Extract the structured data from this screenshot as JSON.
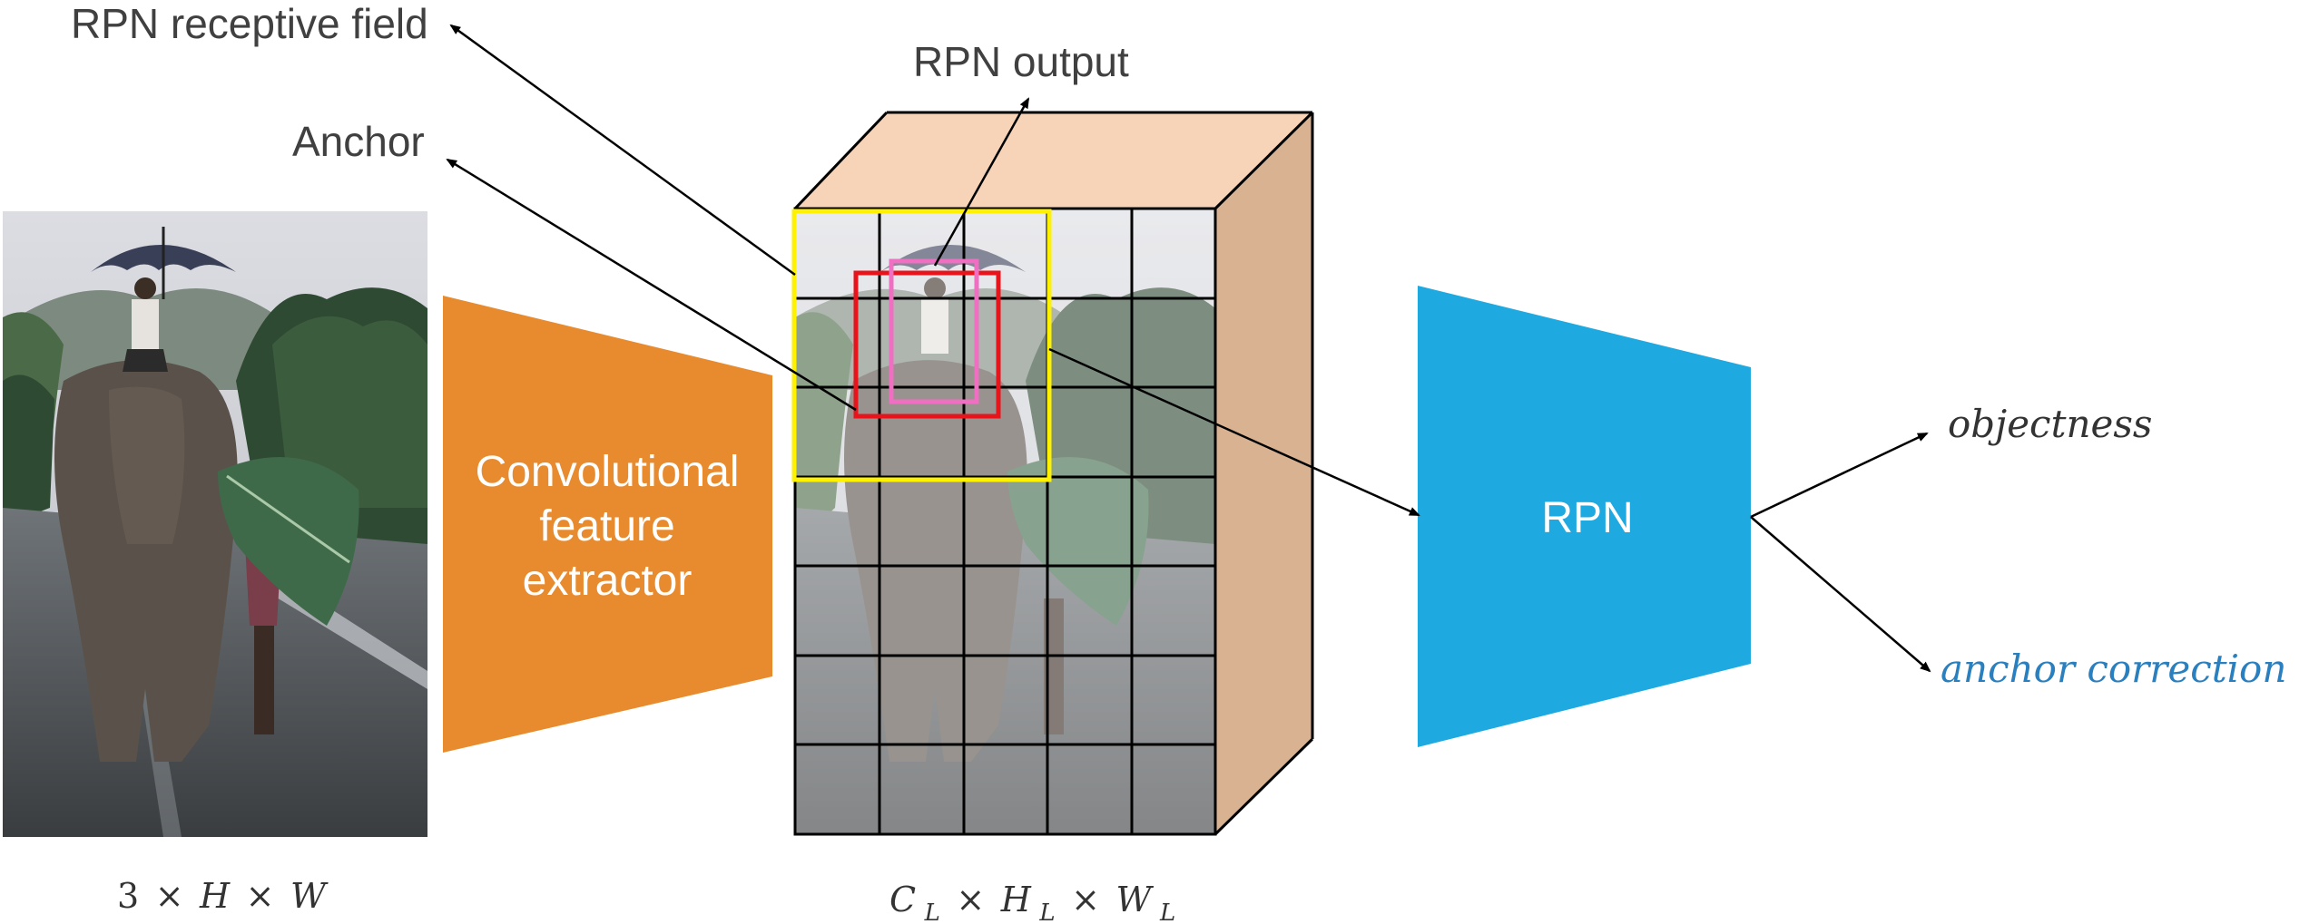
{
  "labels": {
    "rpn_receptive_field": "RPN receptive field",
    "rpn_output": "RPN output",
    "anchor": "Anchor",
    "conv_line1": "Convolutional",
    "conv_line2": "feature",
    "conv_line3": "extractor",
    "rpn_block": "RPN",
    "objectness": "objectness",
    "anchor_correction": "anchor correction"
  },
  "dims": {
    "input": {
      "a": "3",
      "times1": "×",
      "b": "H",
      "times2": "×",
      "c": "W"
    },
    "feature": {
      "c": "C",
      "c_sub": "L",
      "times1": "×",
      "h": "H",
      "h_sub": "L",
      "times2": "×",
      "w": "W",
      "w_sub": "L"
    }
  },
  "colors": {
    "orange": "#E88B2E",
    "blue": "#1FA9E1",
    "cube_top": "#F7D3B7",
    "cube_side": "#D9B292",
    "yellow_box": "#FFF200",
    "red_box": "#E8131B",
    "pink_box": "#F06FC2",
    "anchor_correction_text": "#2A7FBF"
  },
  "images": {
    "input_photo": "elephant-with-rider-and-umbrella-on-wet-road",
    "feature_map_photo": "faded-elephant-photo-with-grid"
  }
}
